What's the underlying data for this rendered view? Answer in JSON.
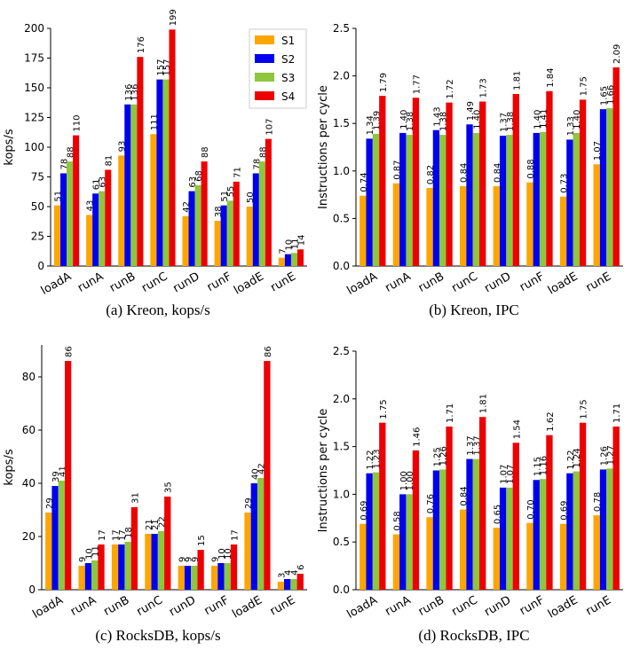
{
  "colors": {
    "S1": "#ffa500",
    "S2": "#0000ee",
    "S3": "#8dc63f",
    "S4": "#ee0000"
  },
  "chart_data": [
    {
      "type": "bar",
      "title": "",
      "caption": "(a) Kreon, kops/s",
      "ylabel": "kops/s",
      "xlabel": "",
      "ylim": [
        0,
        200
      ],
      "yticks": [
        0,
        25,
        50,
        75,
        100,
        125,
        150,
        175,
        200
      ],
      "yticklabels": [
        "0",
        "25",
        "50",
        "75",
        "100",
        "125",
        "150",
        "175",
        "200"
      ],
      "categories": [
        "loadA",
        "runA",
        "runB",
        "runC",
        "runD",
        "runF",
        "loadE",
        "runE"
      ],
      "legend": "top-right",
      "series": [
        {
          "name": "S1",
          "values": [
            51,
            43,
            93,
            111,
            42,
            38,
            50,
            7
          ],
          "labels": [
            "51",
            "43",
            "93",
            "111",
            "42",
            "38",
            "50",
            "7"
          ]
        },
        {
          "name": "S2",
          "values": [
            78,
            61,
            136,
            157,
            63,
            51,
            78,
            10
          ],
          "labels": [
            "78",
            "61",
            "136",
            "157",
            "63",
            "51",
            "78",
            "10"
          ]
        },
        {
          "name": "S3",
          "values": [
            88,
            63,
            136,
            157,
            68,
            55,
            88,
            11
          ],
          "labels": [
            "88",
            "63",
            "136",
            "157",
            "68",
            "55",
            "88",
            "11"
          ]
        },
        {
          "name": "S4",
          "values": [
            110,
            81,
            176,
            199,
            88,
            71,
            107,
            14
          ],
          "labels": [
            "110",
            "81",
            "176",
            "199",
            "88",
            "71",
            "107",
            "14"
          ]
        }
      ]
    },
    {
      "type": "bar",
      "title": "",
      "caption": "(b) Kreon, IPC",
      "ylabel": "Instructions per cycle",
      "xlabel": "",
      "ylim": [
        0,
        2.5
      ],
      "yticks": [
        0,
        0.5,
        1,
        1.5,
        2,
        2.5
      ],
      "yticklabels": [
        "0.0",
        "0.5",
        "1.0",
        "1.5",
        "2.0",
        "2.5"
      ],
      "categories": [
        "loadA",
        "runA",
        "runB",
        "runC",
        "runD",
        "runF",
        "loadE",
        "runE"
      ],
      "series": [
        {
          "name": "S1",
          "values": [
            0.74,
            0.87,
            0.82,
            0.84,
            0.84,
            0.88,
            0.73,
            1.07
          ],
          "labels": [
            "0.74",
            "0.87",
            "0.82",
            "0.84",
            "0.84",
            "0.88",
            "0.73",
            "1.07"
          ]
        },
        {
          "name": "S2",
          "values": [
            1.34,
            1.4,
            1.43,
            1.49,
            1.37,
            1.4,
            1.33,
            1.65
          ],
          "labels": [
            "1.34",
            "1.40",
            "1.43",
            "1.49",
            "1.37",
            "1.40",
            "1.33",
            "1.65"
          ]
        },
        {
          "name": "S3",
          "values": [
            1.39,
            1.38,
            1.38,
            1.4,
            1.38,
            1.41,
            1.4,
            1.66
          ],
          "labels": [
            "1.39",
            "1.38",
            "1.38",
            "1.40",
            "1.38",
            "1.41",
            "1.40",
            "1.66"
          ]
        },
        {
          "name": "S4",
          "values": [
            1.79,
            1.77,
            1.72,
            1.73,
            1.81,
            1.84,
            1.75,
            2.09
          ],
          "labels": [
            "1.79",
            "1.77",
            "1.72",
            "1.73",
            "1.81",
            "1.84",
            "1.75",
            "2.09"
          ]
        }
      ]
    },
    {
      "type": "bar",
      "title": "",
      "caption": "(c) RocksDB, kops/s",
      "ylabel": "kops/s",
      "xlabel": "",
      "ylim": [
        0,
        92
      ],
      "yticks": [
        0,
        20,
        40,
        60,
        80
      ],
      "yticklabels": [
        "0",
        "20",
        "40",
        "60",
        "80"
      ],
      "categories": [
        "loadA",
        "runA",
        "runB",
        "runC",
        "runD",
        "runF",
        "loadE",
        "runE"
      ],
      "series": [
        {
          "name": "S1",
          "values": [
            29,
            9,
            17,
            21,
            9,
            9,
            29,
            3
          ],
          "labels": [
            "29",
            "9",
            "17",
            "21",
            "9",
            "9",
            "29",
            "3"
          ]
        },
        {
          "name": "S2",
          "values": [
            39,
            10,
            17,
            21,
            9,
            10,
            40,
            4
          ],
          "labels": [
            "39",
            "10",
            "17",
            "21",
            "9",
            "10",
            "40",
            "4"
          ]
        },
        {
          "name": "S3",
          "values": [
            41,
            11,
            18,
            22,
            9,
            10,
            42,
            4
          ],
          "labels": [
            "41",
            "11",
            "18",
            "22",
            "9",
            "10",
            "42",
            "4"
          ]
        },
        {
          "name": "S4",
          "values": [
            86,
            17,
            31,
            35,
            15,
            17,
            86,
            6
          ],
          "labels": [
            "86",
            "17",
            "31",
            "35",
            "15",
            "17",
            "86",
            "6"
          ]
        }
      ]
    },
    {
      "type": "bar",
      "title": "",
      "caption": "(d) RocksDB, IPC",
      "ylabel": "Instructions per cycle",
      "xlabel": "",
      "ylim": [
        0,
        2.5
      ],
      "yticks": [
        0,
        0.5,
        1,
        1.5,
        2,
        2.5
      ],
      "yticklabels": [
        "0.0",
        "0.5",
        "1.0",
        "1.5",
        "2.0",
        "2.5"
      ],
      "categories": [
        "loadA",
        "runA",
        "runB",
        "runC",
        "runD",
        "runF",
        "loadE",
        "runE"
      ],
      "series": [
        {
          "name": "S1",
          "values": [
            0.69,
            0.58,
            0.76,
            0.84,
            0.65,
            0.7,
            0.69,
            0.78
          ],
          "labels": [
            "0.69",
            "0.58",
            "0.76",
            "0.84",
            "0.65",
            "0.70",
            "0.69",
            "0.78"
          ]
        },
        {
          "name": "S2",
          "values": [
            1.22,
            1.0,
            1.25,
            1.37,
            1.07,
            1.15,
            1.22,
            1.26
          ],
          "labels": [
            "1.22",
            "1.00",
            "1.25",
            "1.37",
            "1.07",
            "1.15",
            "1.22",
            "1.26"
          ]
        },
        {
          "name": "S3",
          "values": [
            1.23,
            1.0,
            1.26,
            1.37,
            1.07,
            1.16,
            1.24,
            1.27
          ],
          "labels": [
            "1.23",
            "1.00",
            "1.26",
            "1.37",
            "1.07",
            "1.16",
            "1.24",
            "1.27"
          ]
        },
        {
          "name": "S4",
          "values": [
            1.75,
            1.46,
            1.71,
            1.81,
            1.54,
            1.62,
            1.75,
            1.71
          ],
          "labels": [
            "1.75",
            "1.46",
            "1.71",
            "1.81",
            "1.54",
            "1.62",
            "1.75",
            "1.71"
          ]
        }
      ]
    }
  ]
}
